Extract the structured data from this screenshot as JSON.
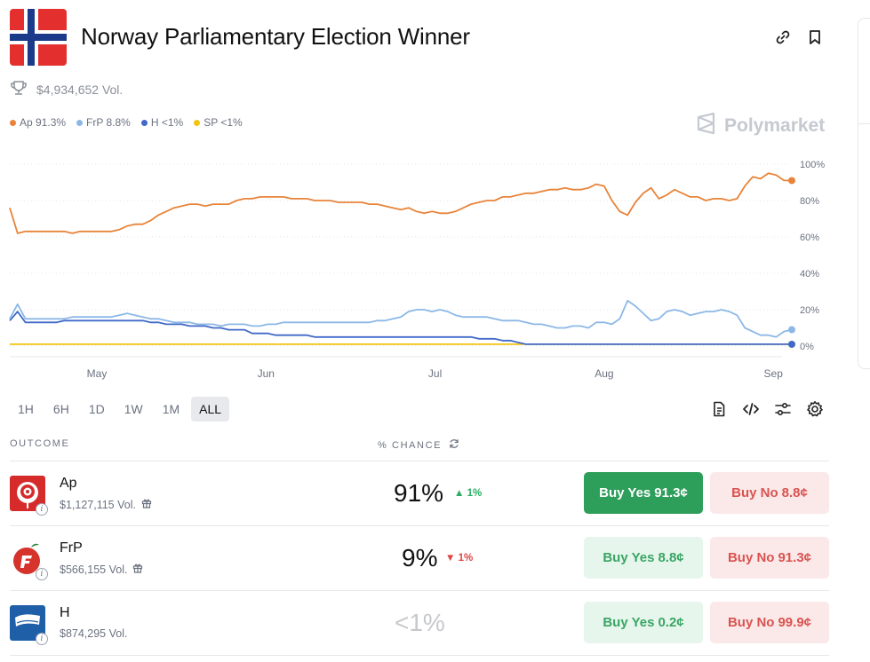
{
  "header": {
    "title": "Norway Parliamentary Election Winner",
    "volume": "$4,934,652 Vol."
  },
  "legend": [
    {
      "label": "Ap 91.3%",
      "color": "#e8843a"
    },
    {
      "label": "FrP 8.8%",
      "color": "#8cb8e6"
    },
    {
      "label": "H <1%",
      "color": "#4169c9"
    },
    {
      "label": "SP <1%",
      "color": "#f2c40f"
    }
  ],
  "brand": "Polymarket",
  "chart_data": {
    "type": "line",
    "x_ticks": [
      "May",
      "Jun",
      "Jul",
      "Aug",
      "Sep"
    ],
    "y_ticks": [
      "100%",
      "80%",
      "60%",
      "40%",
      "20%",
      "0%"
    ],
    "ylim": [
      0,
      100
    ],
    "grid": true,
    "series": [
      {
        "name": "Ap",
        "color": "#e8843a",
        "values": [
          76,
          62,
          63,
          63,
          63,
          63,
          63,
          63,
          62,
          63,
          63,
          63,
          63,
          63,
          64,
          66,
          67,
          67,
          69,
          72,
          74,
          76,
          77,
          78,
          78,
          77,
          78,
          78,
          78,
          80,
          81,
          81,
          82,
          82,
          82,
          82,
          81,
          81,
          81,
          80,
          80,
          80,
          79,
          79,
          79,
          79,
          78,
          78,
          77,
          76,
          75,
          76,
          74,
          73,
          74,
          73,
          73,
          74,
          76,
          78,
          79,
          80,
          80,
          82,
          82,
          83,
          84,
          84,
          85,
          86,
          86,
          87,
          86,
          86,
          87,
          89,
          88,
          80,
          74,
          72,
          79,
          84,
          87,
          81,
          83,
          86,
          84,
          82,
          82,
          80,
          81,
          81,
          80,
          81,
          88,
          93,
          92,
          95,
          94,
          91,
          91
        ]
      },
      {
        "name": "FrP",
        "color": "#8cb8e6",
        "values": [
          15,
          23,
          15,
          15,
          15,
          15,
          15,
          15,
          16,
          16,
          16,
          16,
          16,
          16,
          17,
          18,
          17,
          16,
          15,
          15,
          14,
          13,
          13,
          13,
          12,
          12,
          12,
          11,
          12,
          12,
          12,
          11,
          11,
          12,
          12,
          13,
          13,
          13,
          13,
          13,
          13,
          13,
          13,
          13,
          13,
          13,
          13,
          14,
          14,
          15,
          16,
          19,
          20,
          20,
          19,
          20,
          19,
          17,
          16,
          16,
          16,
          16,
          15,
          14,
          14,
          14,
          13,
          12,
          12,
          11,
          10,
          10,
          11,
          11,
          10,
          13,
          13,
          12,
          15,
          25,
          22,
          18,
          14,
          15,
          19,
          20,
          19,
          17,
          18,
          19,
          19,
          20,
          19,
          17,
          10,
          8,
          6,
          6,
          5,
          8,
          9
        ]
      },
      {
        "name": "H",
        "color": "#4169c9",
        "values": [
          14,
          19,
          13,
          13,
          13,
          13,
          13,
          14,
          14,
          14,
          14,
          14,
          14,
          14,
          14,
          14,
          14,
          14,
          13,
          13,
          12,
          12,
          12,
          11,
          11,
          11,
          10,
          10,
          9,
          9,
          9,
          7,
          7,
          7,
          6,
          6,
          6,
          6,
          6,
          5,
          5,
          5,
          5,
          5,
          5,
          5,
          5,
          5,
          5,
          5,
          5,
          5,
          5,
          5,
          5,
          5,
          5,
          5,
          5,
          5,
          4,
          4,
          4,
          3,
          3,
          2,
          1,
          1,
          1,
          1,
          1,
          1,
          1,
          1,
          1,
          1,
          1,
          1,
          1,
          1,
          1,
          1,
          1,
          1,
          1,
          1,
          1,
          1,
          1,
          1,
          1,
          1,
          1,
          1,
          1,
          1,
          1,
          1,
          1,
          1,
          1
        ]
      },
      {
        "name": "SP",
        "color": "#f2c40f",
        "values": [
          1,
          1,
          1,
          1,
          1,
          1,
          1,
          1,
          1,
          1,
          1,
          1,
          1,
          1,
          1,
          1,
          1,
          1,
          1,
          1,
          1,
          1,
          1,
          1,
          1,
          1,
          1,
          1,
          1,
          1,
          1,
          1,
          1,
          1,
          1,
          1,
          1,
          1,
          1,
          1,
          1,
          1,
          1,
          1,
          1,
          1,
          1,
          1,
          1,
          1,
          1,
          1,
          1,
          1,
          1,
          1,
          1,
          1,
          1,
          1,
          1,
          1,
          1,
          1,
          1,
          1,
          1,
          1,
          1,
          1,
          1,
          1,
          1,
          1,
          1,
          1,
          1,
          1,
          1,
          1,
          1,
          1,
          1,
          1,
          1,
          1,
          1,
          1,
          1,
          1,
          1,
          1,
          1,
          1,
          1,
          1,
          1,
          1,
          1,
          1,
          1
        ]
      }
    ]
  },
  "ranges": [
    "1H",
    "6H",
    "1D",
    "1W",
    "1M",
    "ALL"
  ],
  "active_range": "ALL",
  "table": {
    "col_outcome": "OUTCOME",
    "col_chance": "% CHANCE"
  },
  "outcomes": [
    {
      "name": "Ap",
      "volume": "$1,127,115 Vol.",
      "chance": "91%",
      "delta": "1%",
      "delta_dir": "up",
      "yes_label": "Buy Yes",
      "yes_price": "91.3¢",
      "no_label": "Buy No",
      "no_price": "8.8¢"
    },
    {
      "name": "FrP",
      "volume": "$566,155 Vol.",
      "chance": "9%",
      "delta": "1%",
      "delta_dir": "down",
      "yes_label": "Buy Yes",
      "yes_price": "8.8¢",
      "no_label": "Buy No",
      "no_price": "91.3¢"
    },
    {
      "name": "H",
      "volume": "$874,295 Vol.",
      "chance": "<1%",
      "delta": "",
      "delta_dir": "",
      "yes_label": "Buy Yes",
      "yes_price": "0.2¢",
      "no_label": "Buy No",
      "no_price": "99.9¢"
    }
  ]
}
